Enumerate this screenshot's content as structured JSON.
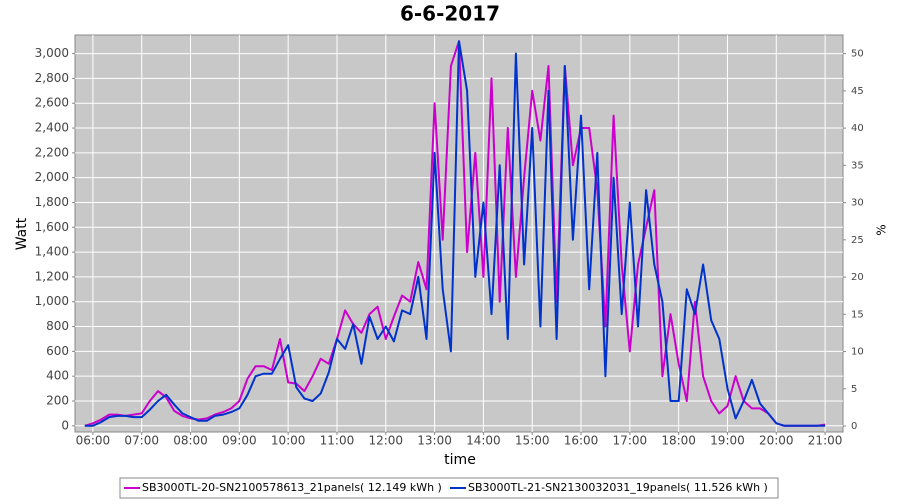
{
  "chart_data": {
    "type": "line",
    "title": "6-6-2017",
    "x_label": "time",
    "y_label": "Watt",
    "y2_label": "%",
    "x": [
      "05:50",
      "06:00",
      "06:10",
      "06:20",
      "06:30",
      "06:40",
      "06:50",
      "07:00",
      "07:10",
      "07:20",
      "07:30",
      "07:40",
      "07:50",
      "08:00",
      "08:10",
      "08:20",
      "08:30",
      "08:40",
      "08:50",
      "09:00",
      "09:10",
      "09:20",
      "09:30",
      "09:40",
      "09:50",
      "10:00",
      "10:10",
      "10:20",
      "10:30",
      "10:40",
      "10:50",
      "11:00",
      "11:10",
      "11:20",
      "11:30",
      "11:40",
      "11:50",
      "12:00",
      "12:10",
      "12:20",
      "12:30",
      "12:40",
      "12:50",
      "13:00",
      "13:10",
      "13:20",
      "13:30",
      "13:40",
      "13:50",
      "14:00",
      "14:10",
      "14:20",
      "14:30",
      "14:40",
      "14:50",
      "15:00",
      "15:10",
      "15:20",
      "15:30",
      "15:40",
      "15:50",
      "16:00",
      "16:10",
      "16:20",
      "16:30",
      "16:40",
      "16:50",
      "17:00",
      "17:10",
      "17:20",
      "17:30",
      "17:40",
      "17:50",
      "18:00",
      "18:10",
      "18:20",
      "18:30",
      "18:40",
      "18:50",
      "19:00",
      "19:10",
      "19:20",
      "19:30",
      "19:40",
      "19:50",
      "20:00",
      "20:10",
      "20:20",
      "20:30",
      "20:40",
      "20:50",
      "21:00"
    ],
    "series": [
      {
        "name": "SB3000TL-20-SN2100578613_21panels( 12.149 kWh )",
        "color": "#cc00cc",
        "values": [
          0,
          20,
          50,
          90,
          90,
          80,
          90,
          100,
          200,
          280,
          230,
          120,
          80,
          60,
          50,
          60,
          90,
          110,
          140,
          200,
          380,
          480,
          480,
          450,
          700,
          350,
          340,
          280,
          400,
          540,
          500,
          700,
          930,
          820,
          750,
          900,
          960,
          700,
          880,
          1050,
          1000,
          1320,
          1100,
          2600,
          1500,
          2900,
          3100,
          1400,
          2200,
          1200,
          2800,
          1000,
          2400,
          1200,
          2000,
          2700,
          2300,
          2900,
          1000,
          2900,
          2100,
          2400,
          2400,
          1900,
          800,
          2500,
          1300,
          600,
          1300,
          1600,
          1900,
          400,
          900,
          500,
          200,
          1000,
          400,
          200,
          100,
          160,
          400,
          200,
          140,
          140,
          100,
          20,
          0,
          0,
          0,
          0,
          0,
          10
        ]
      },
      {
        "name": "SB3000TL-21-SN2130032031_19panels( 11.526 kWh )",
        "color": "#0033cc",
        "values": [
          0,
          0,
          30,
          70,
          80,
          80,
          70,
          70,
          130,
          200,
          250,
          170,
          100,
          70,
          40,
          40,
          80,
          90,
          110,
          140,
          250,
          400,
          420,
          420,
          540,
          650,
          310,
          220,
          200,
          260,
          430,
          700,
          620,
          820,
          500,
          880,
          700,
          800,
          680,
          930,
          900,
          1200,
          700,
          2200,
          1100,
          600,
          3100,
          2700,
          1200,
          1800,
          900,
          2100,
          700,
          3000,
          1300,
          2400,
          800,
          2700,
          700,
          2900,
          1500,
          2500,
          1100,
          2200,
          400,
          2000,
          900,
          1800,
          800,
          1900,
          1300,
          1000,
          200,
          200,
          1100,
          900,
          1300,
          850,
          700,
          300,
          60,
          200,
          370,
          180,
          100,
          20,
          0,
          0,
          0,
          0,
          0,
          0
        ]
      }
    ],
    "xlim": [
      "05:38",
      "21:22"
    ],
    "xticks": [
      "06:00",
      "07:00",
      "08:00",
      "09:00",
      "10:00",
      "11:00",
      "12:00",
      "13:00",
      "14:00",
      "15:00",
      "16:00",
      "17:00",
      "18:00",
      "19:00",
      "20:00",
      "21:00"
    ],
    "ylim": [
      -50,
      3150
    ],
    "yticks": [
      0,
      200,
      400,
      600,
      800,
      {
        "value": 1000,
        "label": "1,000"
      },
      {
        "value": 1200,
        "label": "1,200"
      },
      {
        "value": 1400,
        "label": "1,400"
      },
      {
        "value": 1600,
        "label": "1,600"
      },
      {
        "value": 1800,
        "label": "1,800"
      },
      {
        "value": 2000,
        "label": "2,000"
      },
      {
        "value": 2200,
        "label": "2,200"
      },
      {
        "value": 2400,
        "label": "2,400"
      },
      {
        "value": 2600,
        "label": "2,600"
      },
      {
        "value": 2800,
        "label": "2,800"
      },
      {
        "value": 3000,
        "label": "3,000"
      }
    ],
    "y2lim": [
      -0.8,
      52.5
    ],
    "y2ticks": [
      0,
      5,
      10,
      15,
      20,
      25,
      30,
      35,
      40,
      45,
      50
    ],
    "grid": true,
    "legend": "bottom"
  }
}
